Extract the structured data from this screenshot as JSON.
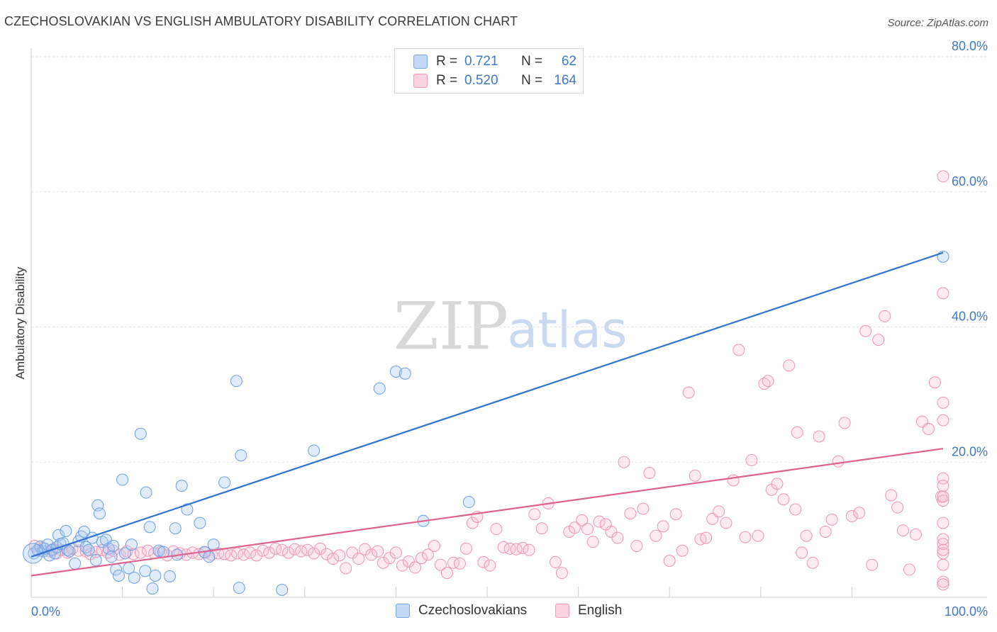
{
  "header": {
    "title": "CZECHOSLOVAKIAN VS ENGLISH AMBULATORY DISABILITY CORRELATION CHART",
    "source": "Source: ZipAtlas.com"
  },
  "watermark": {
    "part1": "ZIP",
    "part2": "atlas"
  },
  "legend": {
    "rows": [
      {
        "r_label": "R =",
        "r_value": "0.721",
        "n_label": "N =",
        "n_value": "62",
        "color": "#7aa8e6"
      },
      {
        "r_label": "R =",
        "r_value": "0.520",
        "n_label": "N =",
        "n_value": "164",
        "color": "#f09ab6"
      }
    ]
  },
  "bottom_legend": [
    {
      "label": "Czechoslovakians",
      "color": "#7aa8e6"
    },
    {
      "label": "English",
      "color": "#f09ab6"
    }
  ],
  "chart_data": {
    "type": "scatter",
    "title": "CZECHOSLOVAKIAN VS ENGLISH AMBULATORY DISABILITY CORRELATION CHART",
    "xlabel": "",
    "ylabel": "Ambulatory Disability",
    "xlim": [
      0,
      100
    ],
    "ylim": [
      0,
      82
    ],
    "x_tick_labels": [
      {
        "value": 0,
        "label": "0.0%"
      },
      {
        "value": 100,
        "label": "100.0%"
      }
    ],
    "y_tick_labels": [
      {
        "value": 20,
        "label": "20.0%"
      },
      {
        "value": 40,
        "label": "40.0%"
      },
      {
        "value": 60,
        "label": "60.0%"
      },
      {
        "value": 80,
        "label": "80.0%"
      }
    ],
    "x_minor_ticks": [
      10,
      20,
      30,
      40,
      50,
      60,
      70,
      80,
      90
    ],
    "grid": true,
    "series": [
      {
        "name": "Czechoslovakians",
        "color": "#7aa8e6",
        "line_color": "#2f72d1",
        "trend": {
          "x": [
            0,
            100
          ],
          "y": [
            6.0,
            51.0
          ]
        },
        "points": [
          [
            0.3,
            6.5
          ],
          [
            0.7,
            7.0
          ],
          [
            1.0,
            7.5
          ],
          [
            1.3,
            6.8
          ],
          [
            1.5,
            7.2
          ],
          [
            1.8,
            7.8
          ],
          [
            2.0,
            6.2
          ],
          [
            2.3,
            7.0
          ],
          [
            2.6,
            6.5
          ],
          [
            2.8,
            7.4
          ],
          [
            3.0,
            9.2
          ],
          [
            3.2,
            7.9
          ],
          [
            3.5,
            8.0
          ],
          [
            3.8,
            9.8
          ],
          [
            4.0,
            7.0
          ],
          [
            4.2,
            6.8
          ],
          [
            4.8,
            5.0
          ],
          [
            5.2,
            8.3
          ],
          [
            5.5,
            9.0
          ],
          [
            5.8,
            9.7
          ],
          [
            6.0,
            7.4
          ],
          [
            6.3,
            7.0
          ],
          [
            6.7,
            8.8
          ],
          [
            7.1,
            5.5
          ],
          [
            7.3,
            13.6
          ],
          [
            7.5,
            12.4
          ],
          [
            7.8,
            8.2
          ],
          [
            8.2,
            8.5
          ],
          [
            8.5,
            7.2
          ],
          [
            9.0,
            7.6
          ],
          [
            9.3,
            4.1
          ],
          [
            9.6,
            3.2
          ],
          [
            10.0,
            17.4
          ],
          [
            10.3,
            6.5
          ],
          [
            10.7,
            4.3
          ],
          [
            11.0,
            7.8
          ],
          [
            11.3,
            2.9
          ],
          [
            8.8,
            6.0
          ],
          [
            12.5,
            3.9
          ],
          [
            13.0,
            10.4
          ],
          [
            13.3,
            1.3
          ],
          [
            13.6,
            3.2
          ],
          [
            14.0,
            6.9
          ],
          [
            14.5,
            6.7
          ],
          [
            15.2,
            3.1
          ],
          [
            16.0,
            6.3
          ],
          [
            17.1,
            13.0
          ],
          [
            18.5,
            11.0
          ],
          [
            19.0,
            6.7
          ],
          [
            19.5,
            6.0
          ],
          [
            20.0,
            7.8
          ],
          [
            16.5,
            16.5
          ],
          [
            15.8,
            10.2
          ],
          [
            12.6,
            15.5
          ],
          [
            12.0,
            24.2
          ],
          [
            21.2,
            17.0
          ],
          [
            22.5,
            32.0
          ],
          [
            23.0,
            21.0
          ],
          [
            22.8,
            1.4
          ],
          [
            27.5,
            1.1
          ],
          [
            31.0,
            21.7
          ],
          [
            38.2,
            30.9
          ],
          [
            40.0,
            33.4
          ],
          [
            41.0,
            33.1
          ],
          [
            43.0,
            11.3
          ],
          [
            48.0,
            14.1
          ],
          [
            100,
            50.4
          ]
        ]
      },
      {
        "name": "English",
        "color": "#f09ab6",
        "line_color": "#e0608e",
        "trend": {
          "x": [
            0,
            100
          ],
          "y": [
            3.2,
            22.0
          ]
        },
        "points": [
          [
            0.4,
            7.6
          ],
          [
            0.8,
            6.9
          ],
          [
            1.3,
            7.3
          ],
          [
            2.0,
            6.8
          ],
          [
            2.4,
            7.1
          ],
          [
            2.8,
            6.5
          ],
          [
            3.3,
            7.0
          ],
          [
            4.0,
            6.6
          ],
          [
            4.5,
            7.2
          ],
          [
            5.2,
            6.9
          ],
          [
            6.0,
            6.8
          ],
          [
            6.5,
            6.4
          ],
          [
            7.1,
            6.7
          ],
          [
            7.8,
            7.0
          ],
          [
            8.4,
            6.6
          ],
          [
            9.0,
            6.9
          ],
          [
            9.7,
            6.3
          ],
          [
            10.5,
            6.8
          ],
          [
            11.2,
            6.4
          ],
          [
            12.0,
            6.6
          ],
          [
            12.8,
            6.9
          ],
          [
            13.5,
            6.5
          ],
          [
            14.2,
            6.7
          ],
          [
            14.9,
            6.2
          ],
          [
            15.6,
            6.8
          ],
          [
            16.3,
            6.5
          ],
          [
            17.0,
            6.3
          ],
          [
            17.7,
            6.6
          ],
          [
            18.4,
            6.4
          ],
          [
            19.1,
            6.6
          ],
          [
            19.8,
            6.3
          ],
          [
            20.5,
            6.5
          ],
          [
            21.2,
            6.4
          ],
          [
            21.9,
            6.2
          ],
          [
            22.6,
            6.5
          ],
          [
            23.3,
            6.3
          ],
          [
            24.0,
            6.6
          ],
          [
            24.7,
            6.2
          ],
          [
            25.4,
            6.9
          ],
          [
            26.1,
            6.6
          ],
          [
            26.8,
            7.2
          ],
          [
            27.5,
            7.0
          ],
          [
            28.2,
            6.6
          ],
          [
            28.9,
            7.1
          ],
          [
            29.6,
            6.8
          ],
          [
            30.3,
            7.0
          ],
          [
            31.0,
            6.5
          ],
          [
            31.7,
            7.2
          ],
          [
            32.4,
            6.4
          ],
          [
            33.1,
            5.7
          ],
          [
            33.8,
            6.2
          ],
          [
            34.5,
            4.3
          ],
          [
            35.2,
            6.6
          ],
          [
            35.9,
            5.7
          ],
          [
            36.6,
            7.1
          ],
          [
            37.3,
            6.3
          ],
          [
            38.0,
            6.8
          ],
          [
            38.6,
            5.1
          ],
          [
            39.3,
            5.8
          ],
          [
            40.0,
            6.6
          ],
          [
            40.7,
            4.7
          ],
          [
            41.4,
            5.3
          ],
          [
            42.1,
            4.4
          ],
          [
            42.8,
            5.8
          ],
          [
            43.5,
            6.3
          ],
          [
            44.2,
            7.6
          ],
          [
            44.9,
            4.8
          ],
          [
            45.6,
            3.6
          ],
          [
            46.3,
            5.1
          ],
          [
            47.0,
            5.0
          ],
          [
            47.7,
            7.2
          ],
          [
            48.4,
            11.0
          ],
          [
            48.9,
            11.9
          ],
          [
            49.6,
            5.2
          ],
          [
            50.3,
            4.7
          ],
          [
            51.0,
            10.1
          ],
          [
            51.8,
            7.4
          ],
          [
            52.5,
            7.2
          ],
          [
            53.2,
            7.1
          ],
          [
            53.9,
            7.3
          ],
          [
            54.6,
            7.0
          ],
          [
            55.2,
            12.3
          ],
          [
            56.0,
            10.2
          ],
          [
            56.7,
            13.9
          ],
          [
            57.5,
            5.2
          ],
          [
            58.2,
            3.6
          ],
          [
            59.0,
            9.7
          ],
          [
            59.6,
            10.3
          ],
          [
            60.4,
            11.4
          ],
          [
            61.0,
            10.1
          ],
          [
            61.6,
            8.2
          ],
          [
            62.3,
            11.2
          ],
          [
            63.0,
            10.8
          ],
          [
            63.6,
            9.7
          ],
          [
            64.3,
            8.8
          ],
          [
            65.0,
            20.0
          ],
          [
            65.7,
            12.4
          ],
          [
            66.4,
            7.6
          ],
          [
            67.1,
            13.1
          ],
          [
            67.8,
            18.4
          ],
          [
            68.5,
            9.1
          ],
          [
            69.3,
            10.5
          ],
          [
            70.0,
            5.4
          ],
          [
            70.7,
            12.3
          ],
          [
            71.4,
            6.9
          ],
          [
            72.1,
            30.3
          ],
          [
            72.8,
            18.0
          ],
          [
            73.4,
            8.6
          ],
          [
            74.0,
            8.8
          ],
          [
            74.7,
            11.6
          ],
          [
            75.4,
            12.7
          ],
          [
            76.2,
            11.0
          ],
          [
            77.0,
            17.3
          ],
          [
            77.6,
            36.6
          ],
          [
            78.3,
            8.9
          ],
          [
            79.0,
            20.3
          ],
          [
            79.7,
            9.1
          ],
          [
            80.4,
            31.6
          ],
          [
            81.2,
            15.9
          ],
          [
            81.8,
            16.8
          ],
          [
            82.5,
            14.5
          ],
          [
            83.1,
            34.3
          ],
          [
            83.8,
            13.0
          ],
          [
            84.5,
            6.6
          ],
          [
            85.0,
            9.1
          ],
          [
            85.7,
            5.1
          ],
          [
            86.4,
            23.8
          ],
          [
            87.1,
            9.7
          ],
          [
            87.8,
            11.5
          ],
          [
            88.5,
            20.1
          ],
          [
            89.2,
            25.8
          ],
          [
            90.0,
            12.0
          ],
          [
            90.8,
            12.5
          ],
          [
            91.5,
            39.4
          ],
          [
            92.2,
            4.8
          ],
          [
            92.9,
            38.1
          ],
          [
            93.6,
            41.6
          ],
          [
            94.3,
            15.1
          ],
          [
            95.0,
            13.3
          ],
          [
            95.6,
            9.9
          ],
          [
            96.3,
            4.1
          ],
          [
            97.0,
            9.3
          ],
          [
            97.7,
            26.0
          ],
          [
            98.4,
            24.9
          ],
          [
            99.1,
            31.8
          ],
          [
            99.8,
            14.9
          ],
          [
            84.0,
            24.4
          ],
          [
            80.8,
            32.0
          ],
          [
            100,
            6.5
          ],
          [
            100,
            4.8
          ],
          [
            100,
            14.3
          ],
          [
            100,
            26.2
          ],
          [
            100,
            11.0
          ],
          [
            100,
            28.8
          ],
          [
            100,
            17.6
          ],
          [
            100,
            14.9
          ],
          [
            100,
            7.9
          ],
          [
            100,
            2.3
          ],
          [
            100,
            62.3
          ],
          [
            100,
            16.5
          ],
          [
            100,
            8.6
          ],
          [
            100,
            7.0
          ],
          [
            100,
            1.9
          ],
          [
            100,
            45.0
          ]
        ]
      }
    ]
  }
}
